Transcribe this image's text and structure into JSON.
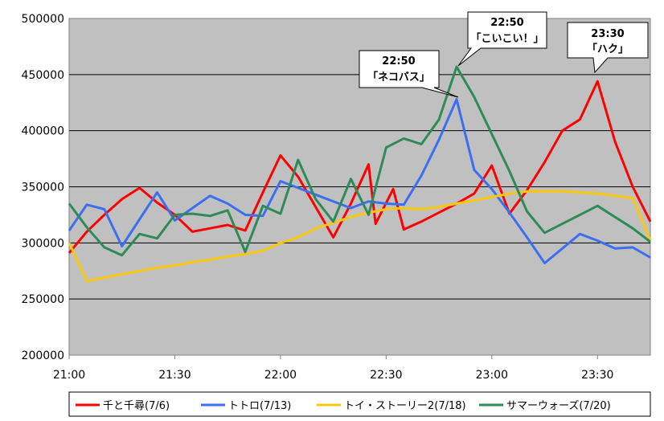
{
  "chart_data": {
    "type": "line",
    "title": "",
    "xlabel": "",
    "ylabel": "",
    "ylim": [
      200000,
      500000
    ],
    "yticks": [
      200000,
      250000,
      300000,
      350000,
      400000,
      450000,
      500000
    ],
    "ytick_labels": [
      "200000",
      "250000",
      "300000",
      "350000",
      "400000",
      "450000",
      "500000"
    ],
    "xlim": [
      0,
      165
    ],
    "xticks": [
      0,
      30,
      60,
      90,
      120,
      150
    ],
    "xtick_labels": [
      "21:00",
      "21:30",
      "22:00",
      "22:30",
      "23:00",
      "23:30"
    ],
    "grid": "horizontal",
    "legend_position": "bottom",
    "series": [
      {
        "name": "千と千尋(7/6)",
        "color": "#ff0000",
        "points": [
          [
            0,
            291000
          ],
          [
            5,
            310000
          ],
          [
            10,
            325000
          ],
          [
            15,
            339000
          ],
          [
            20,
            349000
          ],
          [
            25,
            336000
          ],
          [
            30,
            325000
          ],
          [
            35,
            310000
          ],
          [
            40,
            313000
          ],
          [
            45,
            316000
          ],
          [
            50,
            311000
          ],
          [
            55,
            345000
          ],
          [
            60,
            378000
          ],
          [
            65,
            359000
          ],
          [
            70,
            332000
          ],
          [
            75,
            305000
          ],
          [
            80,
            335000
          ],
          [
            85,
            370000
          ],
          [
            87,
            317000
          ],
          [
            92,
            348000
          ],
          [
            95,
            312000
          ],
          [
            100,
            319000
          ],
          [
            105,
            327000
          ],
          [
            110,
            335000
          ],
          [
            115,
            344000
          ],
          [
            120,
            369000
          ],
          [
            125,
            326000
          ],
          [
            130,
            347000
          ],
          [
            135,
            372000
          ],
          [
            140,
            400000
          ],
          [
            145,
            410000
          ],
          [
            150,
            444000
          ],
          [
            155,
            390000
          ],
          [
            160,
            350000
          ],
          [
            165,
            319000
          ]
        ]
      },
      {
        "name": "トトロ(7/13)",
        "color": "#3b6fef",
        "points": [
          [
            0,
            311000
          ],
          [
            5,
            334000
          ],
          [
            10,
            330000
          ],
          [
            15,
            297000
          ],
          [
            20,
            321000
          ],
          [
            25,
            345000
          ],
          [
            30,
            320000
          ],
          [
            35,
            331000
          ],
          [
            40,
            342000
          ],
          [
            45,
            335000
          ],
          [
            50,
            325000
          ],
          [
            55,
            324000
          ],
          [
            60,
            355000
          ],
          [
            65,
            349000
          ],
          [
            70,
            343000
          ],
          [
            75,
            337000
          ],
          [
            80,
            331000
          ],
          [
            85,
            337000
          ],
          [
            90,
            335000
          ],
          [
            95,
            334000
          ],
          [
            100,
            360000
          ],
          [
            105,
            392000
          ],
          [
            110,
            428000
          ],
          [
            115,
            365000
          ],
          [
            120,
            348000
          ],
          [
            125,
            327000
          ],
          [
            130,
            305000
          ],
          [
            135,
            282000
          ],
          [
            140,
            295000
          ],
          [
            145,
            308000
          ],
          [
            150,
            302000
          ],
          [
            155,
            295000
          ],
          [
            160,
            296000
          ],
          [
            165,
            287000
          ]
        ]
      },
      {
        "name": "トイ・ストーリー2(7/18)",
        "color": "#f9c80e",
        "points": [
          [
            0,
            300000
          ],
          [
            5,
            266000
          ],
          [
            10,
            269000
          ],
          [
            15,
            272000
          ],
          [
            20,
            275000
          ],
          [
            25,
            278000
          ],
          [
            30,
            280000
          ],
          [
            35,
            283000
          ],
          [
            40,
            285000
          ],
          [
            45,
            288000
          ],
          [
            50,
            290000
          ],
          [
            55,
            293000
          ],
          [
            60,
            300000
          ],
          [
            65,
            305000
          ],
          [
            70,
            313000
          ],
          [
            75,
            318000
          ],
          [
            80,
            323000
          ],
          [
            85,
            327000
          ],
          [
            90,
            330000
          ],
          [
            95,
            331000
          ],
          [
            100,
            330000
          ],
          [
            105,
            332000
          ],
          [
            110,
            335000
          ],
          [
            115,
            338000
          ],
          [
            120,
            341000
          ],
          [
            125,
            344000
          ],
          [
            130,
            346000
          ],
          [
            135,
            346000
          ],
          [
            140,
            346000
          ],
          [
            145,
            345000
          ],
          [
            150,
            344000
          ],
          [
            155,
            342000
          ],
          [
            160,
            340000
          ],
          [
            165,
            302000
          ]
        ]
      },
      {
        "name": "サマーウォーズ(7/20)",
        "color": "#2e8b57",
        "points": [
          [
            0,
            335000
          ],
          [
            5,
            314000
          ],
          [
            10,
            296000
          ],
          [
            15,
            289000
          ],
          [
            20,
            308000
          ],
          [
            25,
            304000
          ],
          [
            30,
            325000
          ],
          [
            35,
            326000
          ],
          [
            40,
            324000
          ],
          [
            45,
            329000
          ],
          [
            50,
            292000
          ],
          [
            55,
            333000
          ],
          [
            60,
            326000
          ],
          [
            65,
            374000
          ],
          [
            70,
            339000
          ],
          [
            75,
            319000
          ],
          [
            80,
            357000
          ],
          [
            85,
            325000
          ],
          [
            90,
            385000
          ],
          [
            95,
            393000
          ],
          [
            100,
            388000
          ],
          [
            105,
            410000
          ],
          [
            110,
            457000
          ],
          [
            115,
            430000
          ],
          [
            120,
            397000
          ],
          [
            125,
            364000
          ],
          [
            130,
            328000
          ],
          [
            135,
            309000
          ],
          [
            140,
            317000
          ],
          [
            145,
            325000
          ],
          [
            150,
            333000
          ],
          [
            155,
            323000
          ],
          [
            160,
            313000
          ],
          [
            165,
            301000
          ]
        ]
      }
    ],
    "annotations": [
      {
        "time": "22:50",
        "label": "「こいこい！」"
      },
      {
        "time": "22:50",
        "label": "「ネコバス」"
      },
      {
        "time": "23:30",
        "label": "「ハク」"
      }
    ]
  }
}
